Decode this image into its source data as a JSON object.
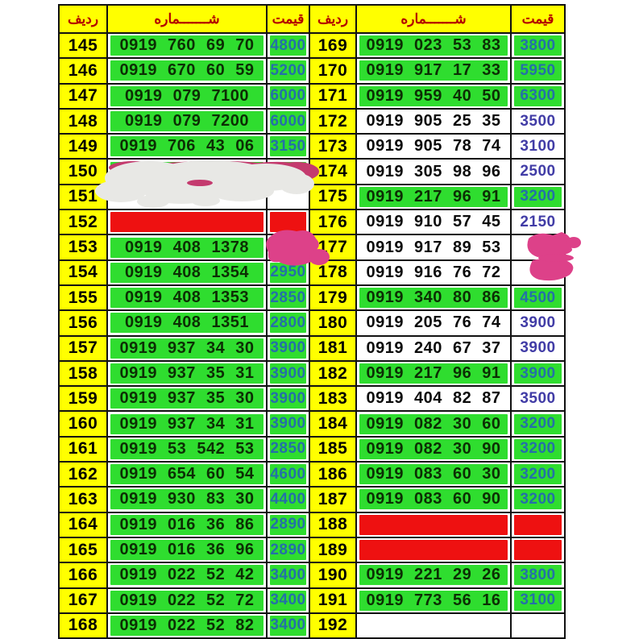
{
  "colors": {
    "yellow": "#ffff00",
    "green": "#2fdd2f",
    "red": "#ee1111",
    "header_text": "#b30000",
    "number_on_green": "#0c2e04",
    "number_on_white": "#0a0a0a",
    "price_on_green": "#2470a8",
    "price_on_white": "#413ca6",
    "pink_blob": "#dd4189",
    "crimson_streak": "#c43a6e",
    "gray_scribble": "#e8e8e5"
  },
  "tables": [
    {
      "name": "left",
      "headers": {
        "row": "ردیف",
        "number": "شـــــــماره",
        "price": "قیمت"
      },
      "rows": [
        {
          "n": "145",
          "num": "0919 760 69 70",
          "price": "4800",
          "num_bg": "green",
          "price_bg": "green"
        },
        {
          "n": "146",
          "num": "0919 670 60 59",
          "price": "5200",
          "num_bg": "green",
          "price_bg": "green"
        },
        {
          "n": "147",
          "num": "0919 079 7100",
          "price": "6000",
          "num_bg": "green",
          "price_bg": "green"
        },
        {
          "n": "148",
          "num": "0919 079 7200",
          "price": "6000",
          "num_bg": "green",
          "price_bg": "green"
        },
        {
          "n": "149",
          "num": "0919 706 43 06",
          "price": "3150",
          "num_bg": "green",
          "price_bg": "green"
        },
        {
          "n": "150",
          "num": "",
          "price": "",
          "num_bg": "green",
          "price_bg": "green"
        },
        {
          "n": "151",
          "num": "",
          "price": "",
          "num_bg": "none",
          "price_bg": "none"
        },
        {
          "n": "152",
          "num": "",
          "price": "",
          "num_bg": "red",
          "price_bg": "red"
        },
        {
          "n": "153",
          "num": "0919 408 1378",
          "price": "",
          "num_bg": "green",
          "price_bg": "green"
        },
        {
          "n": "154",
          "num": "0919 408 1354",
          "price": "2950",
          "num_bg": "green",
          "price_bg": "green"
        },
        {
          "n": "155",
          "num": "0919 408 1353",
          "price": "2850",
          "num_bg": "green",
          "price_bg": "green"
        },
        {
          "n": "156",
          "num": "0919 408 1351",
          "price": "2800",
          "num_bg": "green",
          "price_bg": "green"
        },
        {
          "n": "157",
          "num": "0919 937 34 30",
          "price": "3900",
          "num_bg": "green",
          "price_bg": "green"
        },
        {
          "n": "158",
          "num": "0919 937 35 31",
          "price": "3900",
          "num_bg": "green",
          "price_bg": "green"
        },
        {
          "n": "159",
          "num": "0919 937 35 30",
          "price": "3900",
          "num_bg": "green",
          "price_bg": "green"
        },
        {
          "n": "160",
          "num": "0919 937 34 31",
          "price": "3900",
          "num_bg": "green",
          "price_bg": "green"
        },
        {
          "n": "161",
          "num": "0919 53 542 53",
          "price": "2850",
          "num_bg": "green",
          "price_bg": "green"
        },
        {
          "n": "162",
          "num": "0919 654 60 54",
          "price": "4600",
          "num_bg": "green",
          "price_bg": "green"
        },
        {
          "n": "163",
          "num": "0919 930 83 30",
          "price": "4400",
          "num_bg": "green",
          "price_bg": "green"
        },
        {
          "n": "164",
          "num": "0919 016 36 86",
          "price": "2890",
          "num_bg": "green",
          "price_bg": "green"
        },
        {
          "n": "165",
          "num": "0919 016 36 96",
          "price": "2890",
          "num_bg": "green",
          "price_bg": "green"
        },
        {
          "n": "166",
          "num": "0919 022 52 42",
          "price": "3400",
          "num_bg": "green",
          "price_bg": "green"
        },
        {
          "n": "167",
          "num": "0919 022 52 72",
          "price": "3400",
          "num_bg": "green",
          "price_bg": "green"
        },
        {
          "n": "168",
          "num": "0919 022 52 82",
          "price": "3400",
          "num_bg": "green",
          "price_bg": "green"
        }
      ]
    },
    {
      "name": "right",
      "headers": {
        "row": "ردیف",
        "number": "شـــــــماره",
        "price": "قیمت"
      },
      "rows": [
        {
          "n": "169",
          "num": "0919 023 53 83",
          "price": "3800",
          "num_bg": "green",
          "price_bg": "green"
        },
        {
          "n": "170",
          "num": "0919 917 17 33",
          "price": "5950",
          "num_bg": "green",
          "price_bg": "green"
        },
        {
          "n": "171",
          "num": "0919 959 40 50",
          "price": "6300",
          "num_bg": "green",
          "price_bg": "green"
        },
        {
          "n": "172",
          "num": "0919 905 25 35",
          "price": "3500",
          "num_bg": "white",
          "price_bg": "white"
        },
        {
          "n": "173",
          "num": "0919 905 78 74",
          "price": "3100",
          "num_bg": "white",
          "price_bg": "white"
        },
        {
          "n": "174",
          "num": "0919 305 98 96",
          "price": "2500",
          "num_bg": "white",
          "price_bg": "white"
        },
        {
          "n": "175",
          "num": "0919 217 96 91",
          "price": "3200",
          "num_bg": "green",
          "price_bg": "green"
        },
        {
          "n": "176",
          "num": "0919 910 57 45",
          "price": "2150",
          "num_bg": "white",
          "price_bg": "white"
        },
        {
          "n": "177",
          "num": "0919 917 89 53",
          "price": "",
          "num_bg": "white",
          "price_bg": "none"
        },
        {
          "n": "178",
          "num": "0919 916 76 72",
          "price": "",
          "num_bg": "white",
          "price_bg": "none"
        },
        {
          "n": "179",
          "num": "0919 340 80 86",
          "price": "4500",
          "num_bg": "green",
          "price_bg": "green"
        },
        {
          "n": "180",
          "num": "0919 205 76 74",
          "price": "3900",
          "num_bg": "white",
          "price_bg": "white"
        },
        {
          "n": "181",
          "num": "0919 240 67 37",
          "price": "3900",
          "num_bg": "white",
          "price_bg": "white"
        },
        {
          "n": "182",
          "num": "0919 217 96 91",
          "price": "3900",
          "num_bg": "green",
          "price_bg": "green"
        },
        {
          "n": "183",
          "num": "0919 404 82 87",
          "price": "3500",
          "num_bg": "white",
          "price_bg": "white"
        },
        {
          "n": "184",
          "num": "0919 082 30 60",
          "price": "3200",
          "num_bg": "green",
          "price_bg": "green"
        },
        {
          "n": "185",
          "num": "0919 082 30 90",
          "price": "3200",
          "num_bg": "green",
          "price_bg": "green"
        },
        {
          "n": "186",
          "num": "0919 083 60 30",
          "price": "3200",
          "num_bg": "green",
          "price_bg": "green"
        },
        {
          "n": "187",
          "num": "0919 083 60 90",
          "price": "3200",
          "num_bg": "green",
          "price_bg": "green"
        },
        {
          "n": "188",
          "num": "",
          "price": "",
          "num_bg": "red",
          "price_bg": "red"
        },
        {
          "n": "189",
          "num": "",
          "price": "",
          "num_bg": "red",
          "price_bg": "red"
        },
        {
          "n": "190",
          "num": "0919 221 29 26",
          "price": "3800",
          "num_bg": "green",
          "price_bg": "green"
        },
        {
          "n": "191",
          "num": "0919 773 56 16",
          "price": "3100",
          "num_bg": "green",
          "price_bg": "green"
        },
        {
          "n": "192",
          "num": "",
          "price": "",
          "num_bg": "none",
          "price_bg": "none"
        }
      ]
    }
  ]
}
